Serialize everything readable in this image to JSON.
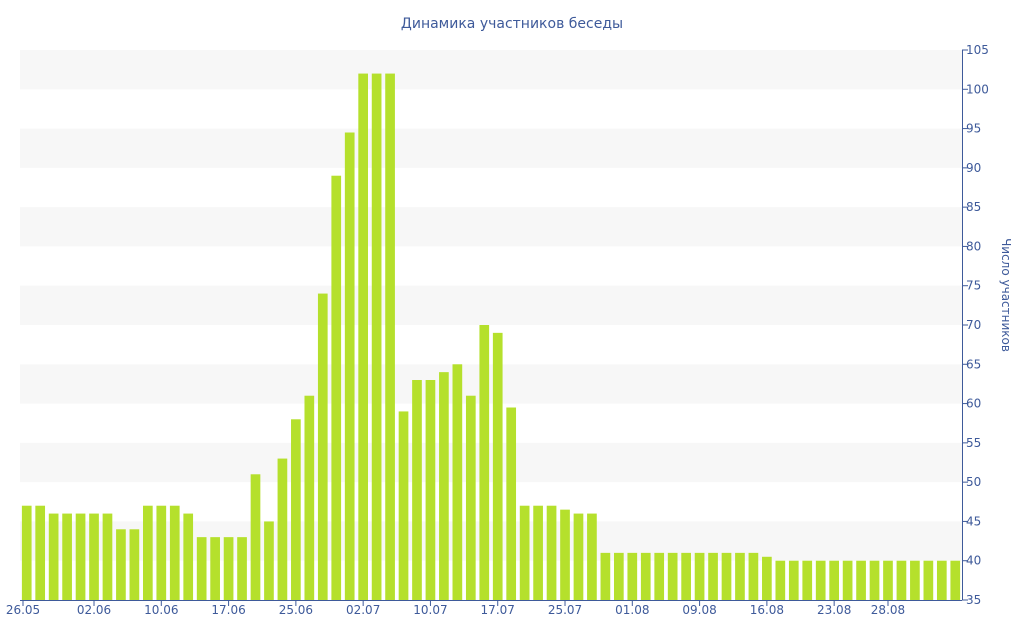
{
  "chart_data": {
    "type": "bar",
    "title": "Динамика участников беседы",
    "xlabel": "",
    "ylabel": "Число участников",
    "ylim": [
      35,
      105
    ],
    "y_ticks": [
      35,
      40,
      45,
      50,
      55,
      60,
      65,
      70,
      75,
      80,
      85,
      90,
      95,
      100,
      105
    ],
    "x_tick_labels": [
      {
        "index": 0,
        "label": "26.05"
      },
      {
        "index": 5,
        "label": "02.06"
      },
      {
        "index": 10,
        "label": "10.06"
      },
      {
        "index": 15,
        "label": "17.06"
      },
      {
        "index": 20,
        "label": "25.06"
      },
      {
        "index": 25,
        "label": "02.07"
      },
      {
        "index": 30,
        "label": "10.07"
      },
      {
        "index": 35,
        "label": "17.07"
      },
      {
        "index": 40,
        "label": "25.07"
      },
      {
        "index": 45,
        "label": "01.08"
      },
      {
        "index": 50,
        "label": "09.08"
      },
      {
        "index": 55,
        "label": "16.08"
      },
      {
        "index": 60,
        "label": "23.08"
      },
      {
        "index": 64,
        "label": "28.08"
      }
    ],
    "values": [
      47,
      47,
      46,
      46,
      46,
      46,
      46,
      44,
      44,
      47,
      47,
      47,
      46,
      43,
      43,
      43,
      43,
      51,
      45,
      53,
      58,
      61,
      74,
      89,
      94.5,
      102,
      102,
      102,
      59,
      63,
      63,
      64,
      65,
      61,
      70,
      69,
      59.5,
      47,
      47,
      47,
      46.5,
      46,
      46,
      41,
      41,
      41,
      41,
      41,
      41,
      41,
      41,
      41,
      41,
      41,
      41,
      40.5,
      40,
      40,
      40,
      40,
      40,
      40,
      40,
      40,
      40,
      40,
      40,
      40,
      40,
      40
    ],
    "grid": "horizontal bands",
    "bar_color": "#b5e02c",
    "band_color": "#f7f7f7",
    "text_color": "#3e5a9a"
  }
}
